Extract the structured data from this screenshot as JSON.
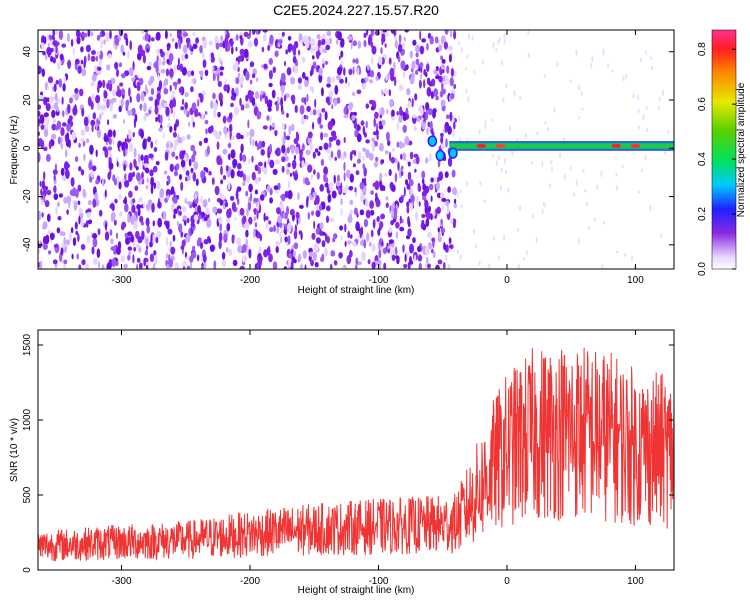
{
  "title": "C2E5.2024.227.15.57.R20",
  "colors": {
    "scatter": "#7a1ff0",
    "band": "#1aa83a",
    "signal": "#f03434"
  },
  "chart_data": [
    {
      "type": "heatmap",
      "xlabel": "Height of straight line (km)",
      "ylabel": "Frequency (Hz)",
      "xlim": [
        -365,
        130
      ],
      "ylim": [
        -50,
        49
      ],
      "x_ticks": [
        -300,
        -200,
        -100,
        0,
        100
      ],
      "x_tick_labels": [
        "-300",
        "-200",
        "-100",
        "0",
        "100"
      ],
      "y_ticks": [
        -40,
        -20,
        0,
        20,
        40
      ],
      "y_tick_labels": [
        "-40",
        "-20",
        "0",
        "20",
        "40"
      ],
      "colorbar": {
        "label": "Normalized spectral amplitude",
        "range": [
          0.0,
          0.87
        ],
        "ticks": [
          0.0,
          0.2,
          0.4,
          0.6,
          0.8
        ],
        "tick_labels": [
          "0.0",
          "0.2",
          "0.4",
          "0.6",
          "0.8"
        ],
        "colormap": "rainbow"
      },
      "noise_region_x": [
        -365,
        -40
      ],
      "tone_band": {
        "x_start": -45,
        "x_end": 130,
        "frequency": 1,
        "width_hz": 4
      }
    },
    {
      "type": "line",
      "xlabel": "Height of straight line (km)",
      "ylabel": "SNR (10 * v/v)",
      "xlim": [
        -365,
        130
      ],
      "ylim": [
        0,
        1600
      ],
      "x_ticks": [
        -300,
        -200,
        -100,
        0,
        100
      ],
      "x_tick_labels": [
        "-300",
        "-200",
        "-100",
        "0",
        "100"
      ],
      "y_ticks": [
        0,
        500,
        1000,
        1500
      ],
      "y_tick_labels": [
        "0",
        "500",
        "1000",
        "1500"
      ],
      "series": [
        {
          "x": [
            -365,
            -300,
            -250,
            -200,
            -150,
            -100,
            -60,
            -40,
            -30,
            -20,
            -10,
            0,
            20,
            40,
            60,
            80,
            100,
            120,
            130
          ],
          "y": [
            160,
            185,
            200,
            240,
            270,
            290,
            300,
            310,
            430,
            560,
            700,
            800,
            900,
            930,
            920,
            890,
            820,
            800,
            780
          ]
        }
      ]
    }
  ]
}
